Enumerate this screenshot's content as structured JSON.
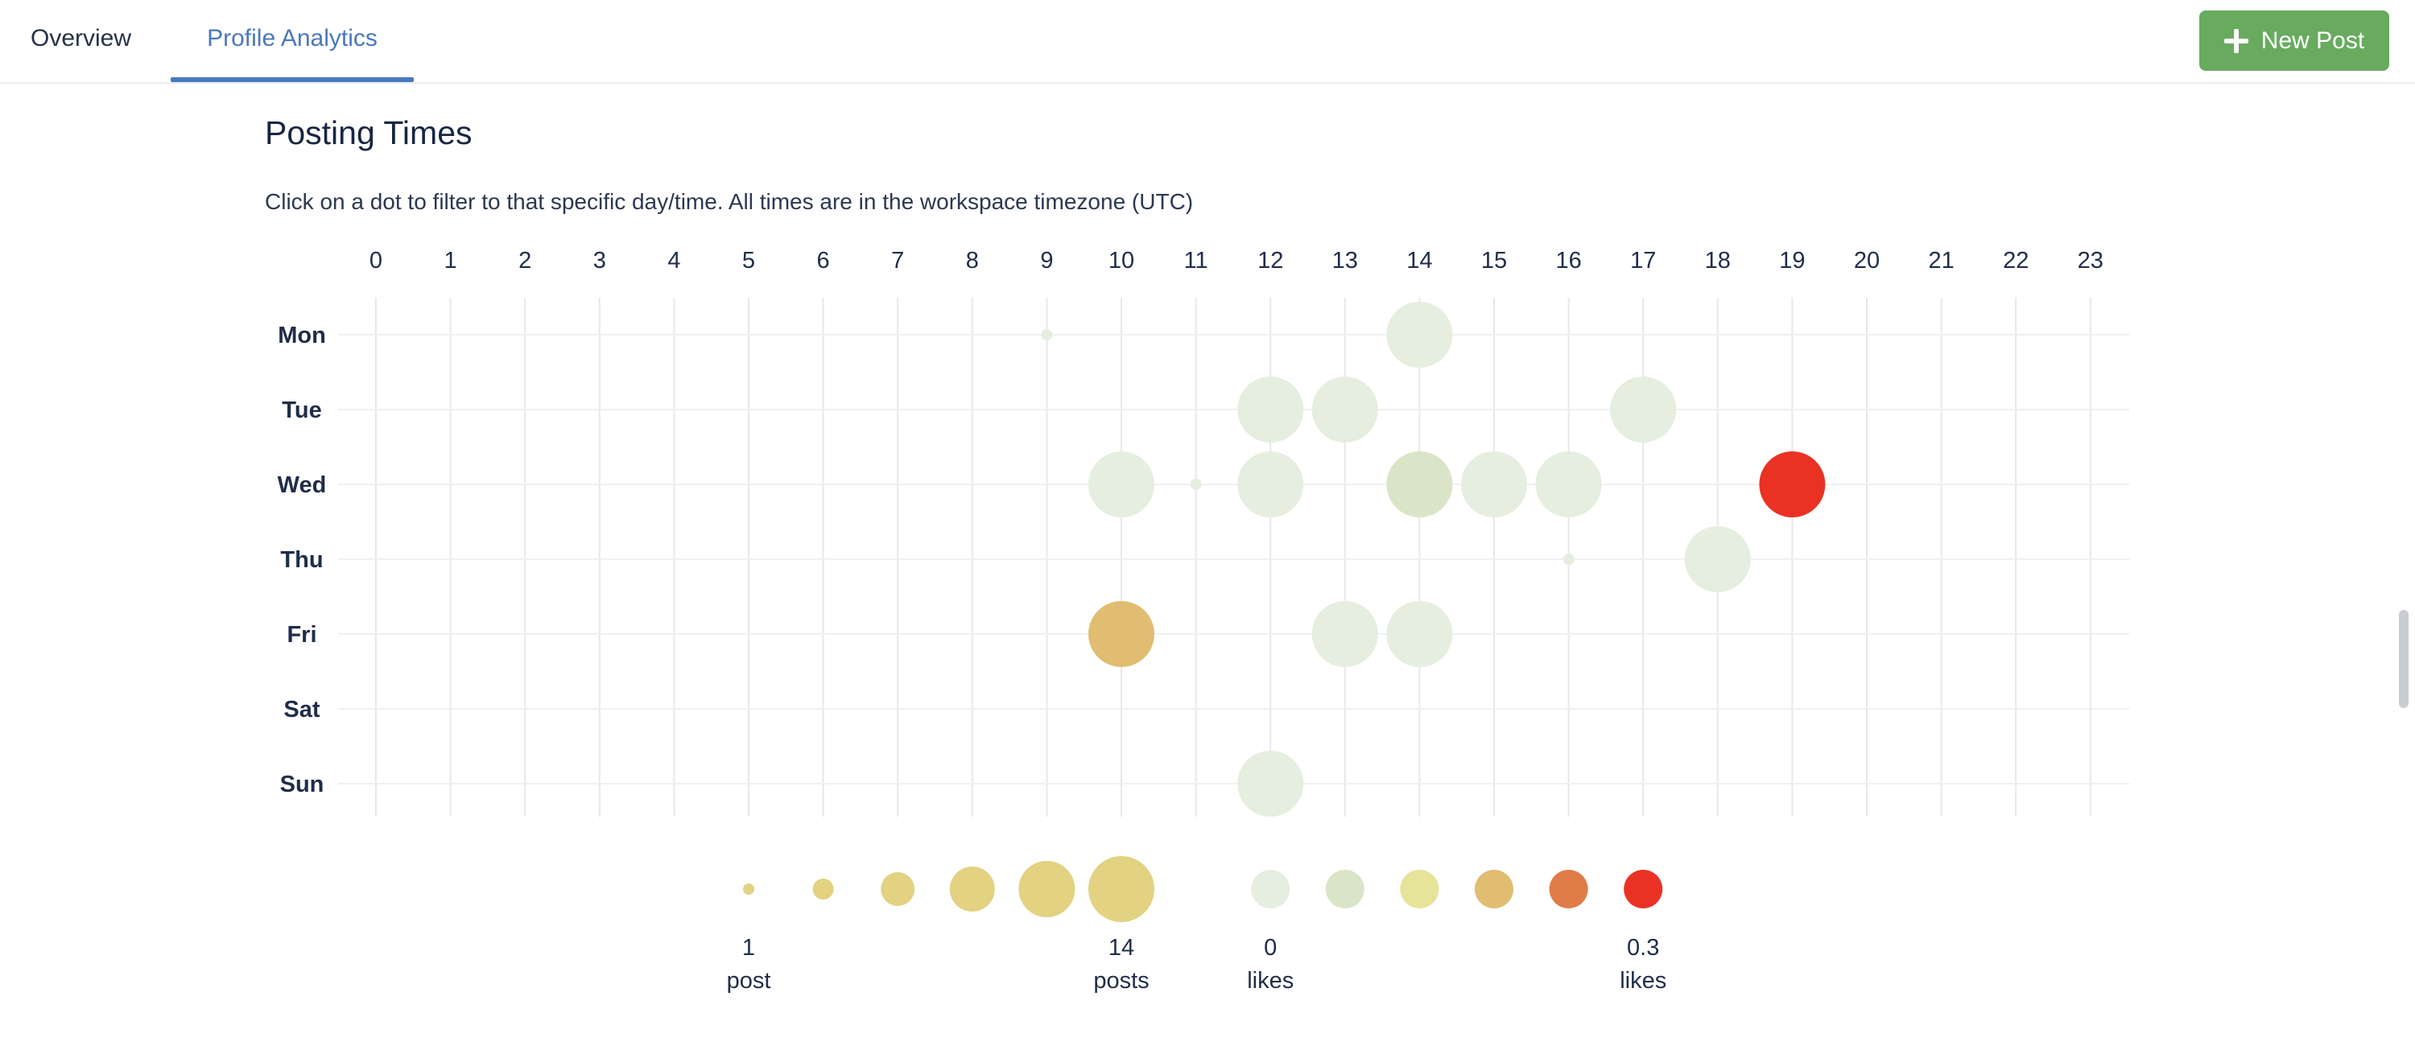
{
  "tabs": [
    {
      "label": "Overview",
      "active": false
    },
    {
      "label": "Profile Analytics",
      "active": true
    }
  ],
  "new_post_label": "New Post",
  "section": {
    "title": "Posting Times",
    "description": "Click on a dot to filter to that specific day/time. All times are in the workspace timezone (UTC)"
  },
  "chart_data": {
    "type": "scatter",
    "x_labels": [
      "0",
      "1",
      "2",
      "3",
      "4",
      "5",
      "6",
      "7",
      "8",
      "9",
      "10",
      "11",
      "12",
      "13",
      "14",
      "15",
      "16",
      "17",
      "18",
      "19",
      "20",
      "21",
      "22",
      "23"
    ],
    "y_labels": [
      "Mon",
      "Tue",
      "Wed",
      "Thu",
      "Fri",
      "Sat",
      "Sun"
    ],
    "size_encodes": "posts",
    "color_encodes": "likes",
    "points": [
      {
        "day": "Mon",
        "hour": 9,
        "posts": 1,
        "likes": 0
      },
      {
        "day": "Mon",
        "hour": 14,
        "posts": 14,
        "likes": 0
      },
      {
        "day": "Tue",
        "hour": 12,
        "posts": 14,
        "likes": 0
      },
      {
        "day": "Tue",
        "hour": 13,
        "posts": 14,
        "likes": 0
      },
      {
        "day": "Tue",
        "hour": 17,
        "posts": 14,
        "likes": 0
      },
      {
        "day": "Wed",
        "hour": 10,
        "posts": 14,
        "likes": 0
      },
      {
        "day": "Wed",
        "hour": 11,
        "posts": 1,
        "likes": 0
      },
      {
        "day": "Wed",
        "hour": 12,
        "posts": 14,
        "likes": 0
      },
      {
        "day": "Wed",
        "hour": 14,
        "posts": 14,
        "likes": 0.06
      },
      {
        "day": "Wed",
        "hour": 15,
        "posts": 14,
        "likes": 0
      },
      {
        "day": "Wed",
        "hour": 16,
        "posts": 14,
        "likes": 0
      },
      {
        "day": "Wed",
        "hour": 19,
        "posts": 14,
        "likes": 0.3
      },
      {
        "day": "Thu",
        "hour": 16,
        "posts": 1,
        "likes": 0
      },
      {
        "day": "Thu",
        "hour": 18,
        "posts": 14,
        "likes": 0
      },
      {
        "day": "Fri",
        "hour": 10,
        "posts": 14,
        "likes": 0.16
      },
      {
        "day": "Fri",
        "hour": 13,
        "posts": 14,
        "likes": 0
      },
      {
        "day": "Fri",
        "hour": 14,
        "posts": 14,
        "likes": 0
      },
      {
        "day": "Sun",
        "hour": 12,
        "posts": 14,
        "likes": 0
      }
    ],
    "color_scale": [
      "#e5eedf",
      "#dae5c8",
      "#e5e499",
      "#e0bd71",
      "#e07c48",
      "#ea3224"
    ],
    "size_legend": {
      "min_value": "1",
      "min_unit": "post",
      "max_value": "14",
      "max_unit": "posts",
      "color": "#e2d281"
    },
    "color_legend": {
      "min_value": "0",
      "min_unit": "likes",
      "max_value": "0.3",
      "max_unit": "likes"
    },
    "grid": true
  }
}
